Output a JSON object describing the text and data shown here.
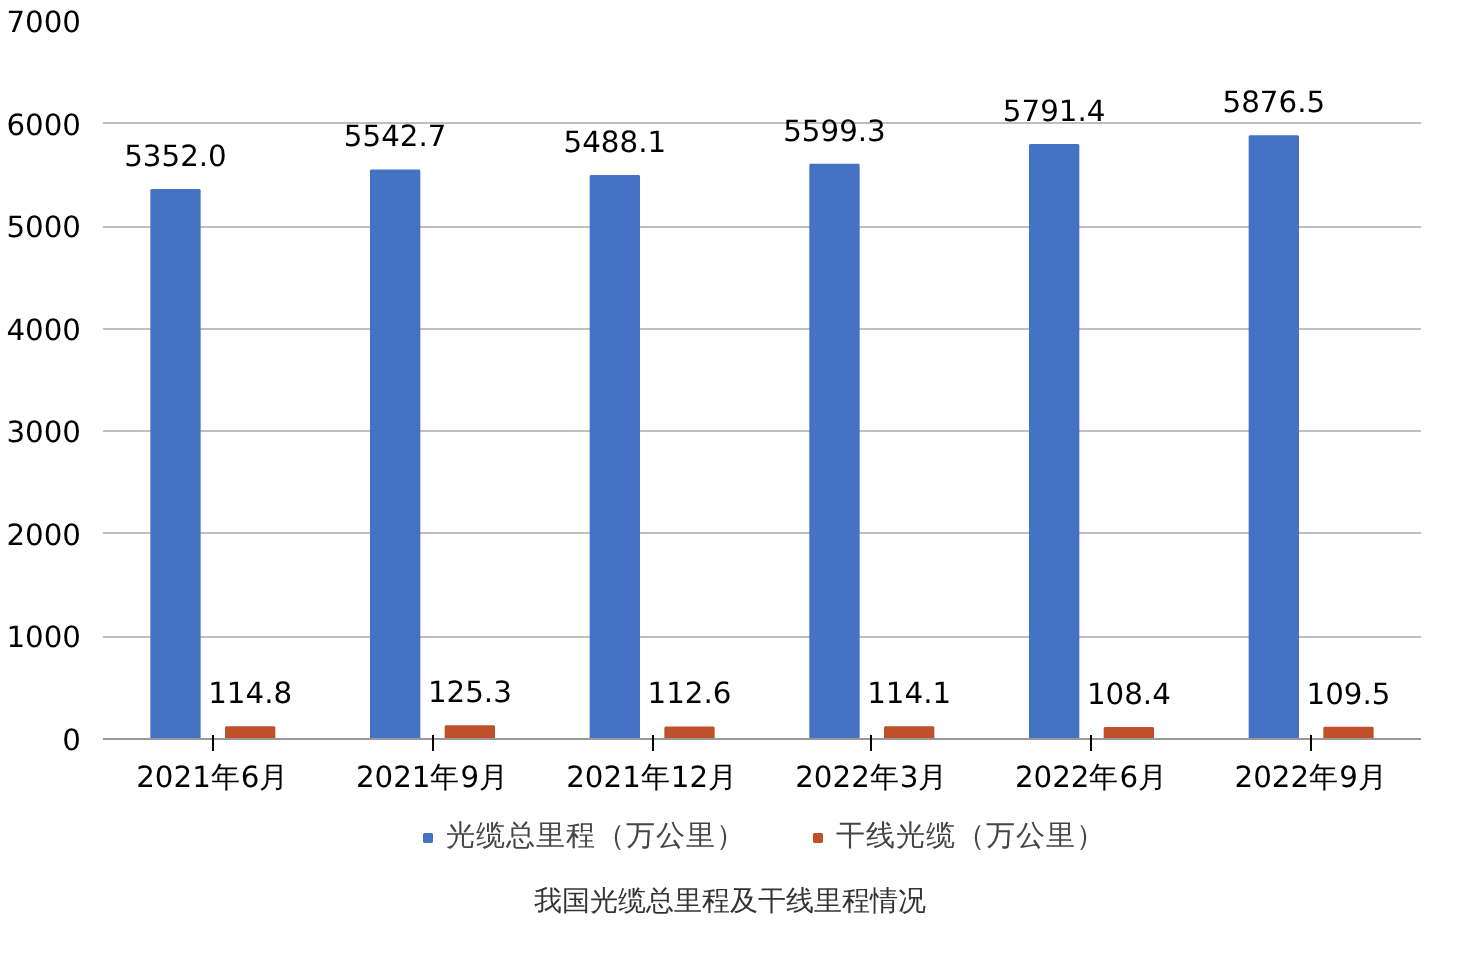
{
  "chart_data": {
    "type": "bar",
    "categories": [
      "2021年6月",
      "2021年9月",
      "2021年12月",
      "2022年3月",
      "2022年6月",
      "2022年9月"
    ],
    "series": [
      {
        "name": "光缆总里程（万公里）",
        "color": "#4472c4",
        "values": [
          5352,
          5542.7,
          5488.1,
          5599.3,
          5791.4,
          5876.5
        ],
        "value_labels": [
          "5352.0",
          "5542.7",
          "5488.1",
          "5599.3",
          "5791.4",
          "5876.5"
        ]
      },
      {
        "name": "干线光缆（万公里）",
        "color": "#c0502a",
        "values": [
          114.8,
          125.3,
          112.6,
          114.1,
          108.4,
          109.5
        ],
        "value_labels": [
          "114.8",
          "125.3",
          "112.6",
          "114.1",
          "108.4",
          "109.5"
        ]
      }
    ],
    "ylim": [
      0,
      7000
    ],
    "yticks": [
      0,
      1000,
      2000,
      3000,
      4000,
      5000,
      6000,
      7000
    ],
    "grid": "y",
    "legend": "bottom",
    "annotations": [
      "我国光缆总里程及干线里程情况"
    ]
  }
}
